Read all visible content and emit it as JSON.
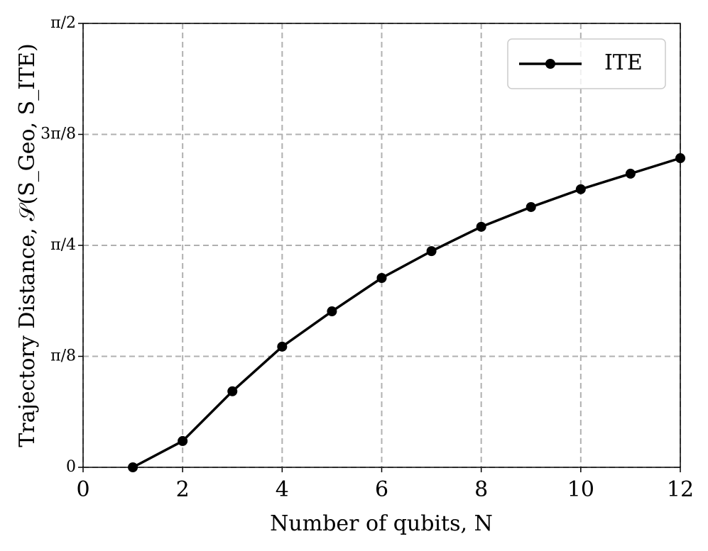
{
  "chart_data": {
    "type": "line",
    "x_label": "Number of qubits, N",
    "y_label": "Trajectory Distance, 𝒮(S_Geo, S_ITE)",
    "x": [
      1,
      2,
      3,
      4,
      5,
      6,
      7,
      8,
      9,
      10,
      11,
      12
    ],
    "series": [
      {
        "name": "ITE",
        "color": "#000000",
        "values": [
          0,
          0.093,
          0.269,
          0.427,
          0.552,
          0.67,
          0.765,
          0.851,
          0.921,
          0.984,
          1.039,
          1.094
        ]
      }
    ],
    "xlim": [
      0,
      12
    ],
    "xticks": [
      0,
      2,
      4,
      6,
      8,
      10,
      12
    ],
    "ylim": [
      0,
      1.5708
    ],
    "yticks": [
      0,
      {
        "value": 0.3927,
        "label": "π/8"
      },
      {
        "value": 0.7854,
        "label": "π/4"
      },
      {
        "value": 1.1781,
        "label": "3π/8"
      },
      {
        "value": 1.5708,
        "label": "π/2"
      }
    ],
    "grid": true,
    "legend": "upper right"
  }
}
